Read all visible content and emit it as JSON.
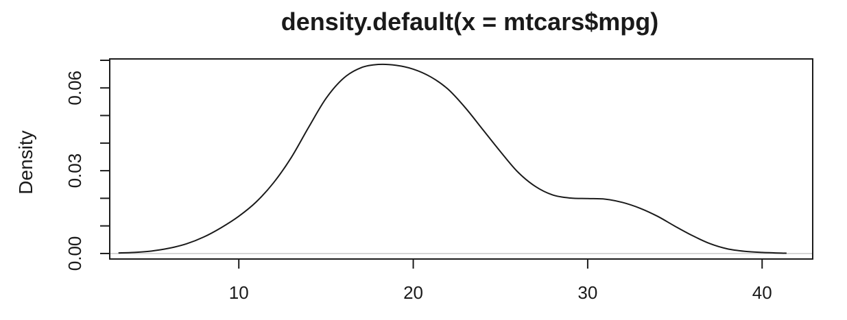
{
  "chart_data": {
    "type": "line",
    "title": "density.default(x = mtcars$mpg)",
    "xlabel": "",
    "ylabel": "Density",
    "xlim": [
      2.6,
      42.9
    ],
    "ylim": [
      -0.002,
      0.0705
    ],
    "x_ticks": [
      10,
      20,
      30,
      40
    ],
    "x_tick_labels": [
      "10",
      "20",
      "30",
      "40"
    ],
    "y_ticks": [
      0.0,
      0.01,
      0.02,
      0.03,
      0.04,
      0.05,
      0.06,
      0.07
    ],
    "y_labeled_ticks": [
      0.0,
      0.03,
      0.06
    ],
    "y_tick_labels": [
      "0.00",
      "0.03",
      "0.06"
    ],
    "grid": false,
    "baseline_y": 0,
    "series": [
      {
        "name": "density",
        "x": [
          3.1,
          4.0,
          5.0,
          6.0,
          7.0,
          8.0,
          9.0,
          10.0,
          11.0,
          12.0,
          13.0,
          14.0,
          15.0,
          16.0,
          17.0,
          18.0,
          19.0,
          20.0,
          21.0,
          22.0,
          23.0,
          24.0,
          25.0,
          26.0,
          27.0,
          28.0,
          29.0,
          30.0,
          31.0,
          32.0,
          33.0,
          34.0,
          35.0,
          36.0,
          37.0,
          38.0,
          39.0,
          40.0,
          41.4
        ],
        "values": [
          0.0002,
          0.0004,
          0.0009,
          0.0019,
          0.0035,
          0.006,
          0.0094,
          0.0135,
          0.0187,
          0.0257,
          0.0347,
          0.0457,
          0.0562,
          0.0635,
          0.0673,
          0.0685,
          0.0682,
          0.0668,
          0.064,
          0.0595,
          0.0527,
          0.0448,
          0.0369,
          0.0295,
          0.0243,
          0.0212,
          0.0201,
          0.0199,
          0.0197,
          0.0185,
          0.0164,
          0.0135,
          0.0099,
          0.0065,
          0.0036,
          0.0017,
          0.0008,
          0.0004,
          0.0001
        ]
      }
    ]
  }
}
